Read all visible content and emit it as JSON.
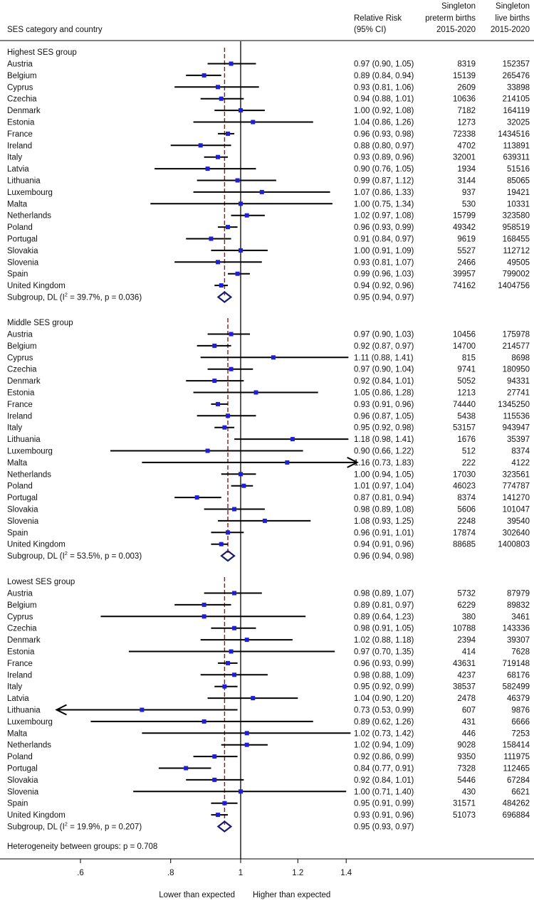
{
  "chart_data": {
    "type": "forest",
    "header": {
      "col1": "SES category and country",
      "rr": [
        "Relative Risk",
        "(95% CI)"
      ],
      "preterm": [
        "Singleton",
        "preterm births",
        "2015-2020"
      ],
      "live": [
        "Singleton",
        "live births",
        "2015-2020"
      ]
    },
    "x_axis": {
      "range": [
        0.5,
        1.45
      ],
      "ticks": [
        {
          "value": 0.6,
          "label": ".6"
        },
        {
          "value": 0.8,
          "label": ".8"
        },
        {
          "value": 1.0,
          "label": "1"
        },
        {
          "value": 1.2,
          "label": "1.2"
        },
        {
          "value": 1.4,
          "label": "1.4"
        }
      ],
      "left_label": "Lower than expected",
      "right_label": "Higher than expected",
      "reference_line": 1.0
    },
    "heterogeneity": "Heterogeneity between groups: p = 0.708",
    "groups": [
      {
        "title": "Highest SES group",
        "rows": [
          {
            "country": "Austria",
            "rr": 0.97,
            "lo": 0.9,
            "hi": 1.05,
            "ci": "0.97 (0.90, 1.05)",
            "preterm": "8319",
            "live": "152357"
          },
          {
            "country": "Belgium",
            "rr": 0.89,
            "lo": 0.84,
            "hi": 0.94,
            "ci": "0.89 (0.84, 0.94)",
            "preterm": "15139",
            "live": "265476"
          },
          {
            "country": "Cyprus",
            "rr": 0.93,
            "lo": 0.81,
            "hi": 1.06,
            "ci": "0.93 (0.81, 1.06)",
            "preterm": "2609",
            "live": "33898"
          },
          {
            "country": "Czechia",
            "rr": 0.94,
            "lo": 0.88,
            "hi": 1.01,
            "ci": "0.94 (0.88, 1.01)",
            "preterm": "10636",
            "live": "214105"
          },
          {
            "country": "Denmark",
            "rr": 1.0,
            "lo": 0.92,
            "hi": 1.08,
            "ci": "1.00 (0.92, 1.08)",
            "preterm": "7182",
            "live": "164119"
          },
          {
            "country": "Estonia",
            "rr": 1.04,
            "lo": 0.86,
            "hi": 1.26,
            "ci": "1.04 (0.86, 1.26)",
            "preterm": "1273",
            "live": "32025"
          },
          {
            "country": "France",
            "rr": 0.96,
            "lo": 0.93,
            "hi": 0.98,
            "ci": "0.96 (0.93, 0.98)",
            "preterm": "72338",
            "live": "1434516"
          },
          {
            "country": "Ireland",
            "rr": 0.88,
            "lo": 0.8,
            "hi": 0.97,
            "ci": "0.88 (0.80, 0.97)",
            "preterm": "4702",
            "live": "113891"
          },
          {
            "country": "Italy",
            "rr": 0.93,
            "lo": 0.89,
            "hi": 0.96,
            "ci": "0.93 (0.89, 0.96)",
            "preterm": "32001",
            "live": "639311"
          },
          {
            "country": "Latvia",
            "rr": 0.9,
            "lo": 0.76,
            "hi": 1.05,
            "ci": "0.90 (0.76, 1.05)",
            "preterm": "1934",
            "live": "51516"
          },
          {
            "country": "Lithuania",
            "rr": 0.99,
            "lo": 0.87,
            "hi": 1.12,
            "ci": "0.99 (0.87, 1.12)",
            "preterm": "3144",
            "live": "85065"
          },
          {
            "country": "Luxembourg",
            "rr": 1.07,
            "lo": 0.86,
            "hi": 1.33,
            "ci": "1.07 (0.86, 1.33)",
            "preterm": "937",
            "live": "19421"
          },
          {
            "country": "Malta",
            "rr": 1.0,
            "lo": 0.75,
            "hi": 1.34,
            "ci": "1.00 (0.75, 1.34)",
            "preterm": "530",
            "live": "10331"
          },
          {
            "country": "Netherlands",
            "rr": 1.02,
            "lo": 0.97,
            "hi": 1.08,
            "ci": "1.02 (0.97, 1.08)",
            "preterm": "15799",
            "live": "323580"
          },
          {
            "country": "Poland",
            "rr": 0.96,
            "lo": 0.93,
            "hi": 0.99,
            "ci": "0.96 (0.93, 0.99)",
            "preterm": "49342",
            "live": "958519"
          },
          {
            "country": "Portugal",
            "rr": 0.91,
            "lo": 0.84,
            "hi": 0.97,
            "ci": "0.91 (0.84, 0.97)",
            "preterm": "9619",
            "live": "168455"
          },
          {
            "country": "Slovakia",
            "rr": 1.0,
            "lo": 0.91,
            "hi": 1.09,
            "ci": "1.00 (0.91, 1.09)",
            "preterm": "5527",
            "live": "112712"
          },
          {
            "country": "Slovenia",
            "rr": 0.93,
            "lo": 0.81,
            "hi": 1.07,
            "ci": "0.93 (0.81, 1.07)",
            "preterm": "2466",
            "live": "49505"
          },
          {
            "country": "Spain",
            "rr": 0.99,
            "lo": 0.96,
            "hi": 1.03,
            "ci": "0.99 (0.96, 1.03)",
            "preterm": "39957",
            "live": "799002"
          },
          {
            "country": "United Kingdom",
            "rr": 0.94,
            "lo": 0.92,
            "hi": 0.96,
            "ci": "0.94 (0.92, 0.96)",
            "preterm": "74162",
            "live": "1404756"
          }
        ],
        "subgroup": {
          "label_pre": "Subgroup, DL (I",
          "label_post": " = 39.7%, p = 0.036)",
          "rr": 0.95,
          "lo": 0.94,
          "hi": 0.97,
          "ci": "0.95 (0.94, 0.97)"
        }
      },
      {
        "title": "Middle SES group",
        "rows": [
          {
            "country": "Austria",
            "rr": 0.97,
            "lo": 0.9,
            "hi": 1.03,
            "ci": "0.97 (0.90, 1.03)",
            "preterm": "10456",
            "live": "175978"
          },
          {
            "country": "Belgium",
            "rr": 0.92,
            "lo": 0.87,
            "hi": 0.97,
            "ci": "0.92 (0.87, 0.97)",
            "preterm": "14700",
            "live": "214577"
          },
          {
            "country": "Cyprus",
            "rr": 1.11,
            "lo": 0.88,
            "hi": 1.41,
            "ci": "1.11 (0.88, 1.41)",
            "preterm": "815",
            "live": "8698"
          },
          {
            "country": "Czechia",
            "rr": 0.97,
            "lo": 0.9,
            "hi": 1.04,
            "ci": "0.97 (0.90, 1.04)",
            "preterm": "9741",
            "live": "180950"
          },
          {
            "country": "Denmark",
            "rr": 0.92,
            "lo": 0.84,
            "hi": 1.01,
            "ci": "0.92 (0.84, 1.01)",
            "preterm": "5052",
            "live": "94331"
          },
          {
            "country": "Estonia",
            "rr": 1.05,
            "lo": 0.86,
            "hi": 1.28,
            "ci": "1.05 (0.86, 1.28)",
            "preterm": "1213",
            "live": "27741"
          },
          {
            "country": "France",
            "rr": 0.93,
            "lo": 0.91,
            "hi": 0.96,
            "ci": "0.93 (0.91, 0.96)",
            "preterm": "74440",
            "live": "1345250"
          },
          {
            "country": "Ireland",
            "rr": 0.96,
            "lo": 0.87,
            "hi": 1.05,
            "ci": "0.96 (0.87, 1.05)",
            "preterm": "5438",
            "live": "115536"
          },
          {
            "country": "Italy",
            "rr": 0.95,
            "lo": 0.92,
            "hi": 0.98,
            "ci": "0.95 (0.92, 0.98)",
            "preterm": "53157",
            "live": "943947"
          },
          {
            "country": "Lithuania",
            "rr": 1.18,
            "lo": 0.98,
            "hi": 1.41,
            "ci": "1.18 (0.98, 1.41)",
            "preterm": "1676",
            "live": "35397"
          },
          {
            "country": "Luxembourg",
            "rr": 0.9,
            "lo": 0.66,
            "hi": 1.22,
            "ci": "0.90 (0.66, 1.22)",
            "preterm": "512",
            "live": "8374"
          },
          {
            "country": "Malta",
            "rr": 1.16,
            "lo": 0.73,
            "hi": 1.83,
            "ci": "1.16 (0.73, 1.83)",
            "preterm": "222",
            "live": "4122"
          },
          {
            "country": "Netherlands",
            "rr": 1.0,
            "lo": 0.94,
            "hi": 1.05,
            "ci": "1.00 (0.94, 1.05)",
            "preterm": "17030",
            "live": "323561"
          },
          {
            "country": "Poland",
            "rr": 1.01,
            "lo": 0.97,
            "hi": 1.04,
            "ci": "1.01 (0.97, 1.04)",
            "preterm": "46023",
            "live": "774787"
          },
          {
            "country": "Portugal",
            "rr": 0.87,
            "lo": 0.81,
            "hi": 0.94,
            "ci": "0.87 (0.81, 0.94)",
            "preterm": "8374",
            "live": "141270"
          },
          {
            "country": "Slovakia",
            "rr": 0.98,
            "lo": 0.89,
            "hi": 1.08,
            "ci": "0.98 (0.89, 1.08)",
            "preterm": "5606",
            "live": "101047"
          },
          {
            "country": "Slovenia",
            "rr": 1.08,
            "lo": 0.93,
            "hi": 1.25,
            "ci": "1.08 (0.93, 1.25)",
            "preterm": "2248",
            "live": "39540"
          },
          {
            "country": "Spain",
            "rr": 0.96,
            "lo": 0.91,
            "hi": 1.01,
            "ci": "0.96 (0.91, 1.01)",
            "preterm": "17874",
            "live": "302640"
          },
          {
            "country": "United Kingdom",
            "rr": 0.94,
            "lo": 0.91,
            "hi": 0.96,
            "ci": "0.94 (0.91, 0.96)",
            "preterm": "88685",
            "live": "1400803"
          }
        ],
        "subgroup": {
          "label_pre": "Subgroup, DL (I",
          "label_post": " = 53.5%, p = 0.003)",
          "rr": 0.96,
          "lo": 0.94,
          "hi": 0.98,
          "ci": "0.96 (0.94, 0.98)"
        }
      },
      {
        "title": "Lowest SES group",
        "rows": [
          {
            "country": "Austria",
            "rr": 0.98,
            "lo": 0.89,
            "hi": 1.07,
            "ci": "0.98 (0.89, 1.07)",
            "preterm": "5732",
            "live": "87979"
          },
          {
            "country": "Belgium",
            "rr": 0.89,
            "lo": 0.81,
            "hi": 0.97,
            "ci": "0.89 (0.81, 0.97)",
            "preterm": "6229",
            "live": "89832"
          },
          {
            "country": "Cyprus",
            "rr": 0.89,
            "lo": 0.64,
            "hi": 1.23,
            "ci": "0.89 (0.64, 1.23)",
            "preterm": "380",
            "live": "3461"
          },
          {
            "country": "Czechia",
            "rr": 0.98,
            "lo": 0.91,
            "hi": 1.05,
            "ci": "0.98 (0.91, 1.05)",
            "preterm": "10788",
            "live": "143336"
          },
          {
            "country": "Denmark",
            "rr": 1.02,
            "lo": 0.88,
            "hi": 1.18,
            "ci": "1.02 (0.88, 1.18)",
            "preterm": "2394",
            "live": "39307"
          },
          {
            "country": "Estonia",
            "rr": 0.97,
            "lo": 0.7,
            "hi": 1.35,
            "ci": "0.97 (0.70, 1.35)",
            "preterm": "414",
            "live": "7628"
          },
          {
            "country": "France",
            "rr": 0.96,
            "lo": 0.93,
            "hi": 0.99,
            "ci": "0.96 (0.93, 0.99)",
            "preterm": "43631",
            "live": "719148"
          },
          {
            "country": "Ireland",
            "rr": 0.98,
            "lo": 0.88,
            "hi": 1.09,
            "ci": "0.98 (0.88, 1.09)",
            "preterm": "4237",
            "live": "68176"
          },
          {
            "country": "Italy",
            "rr": 0.95,
            "lo": 0.92,
            "hi": 0.99,
            "ci": "0.95 (0.92, 0.99)",
            "preterm": "38537",
            "live": "582499"
          },
          {
            "country": "Latvia",
            "rr": 1.04,
            "lo": 0.9,
            "hi": 1.2,
            "ci": "1.04 (0.90, 1.20)",
            "preterm": "2478",
            "live": "46379"
          },
          {
            "country": "Lithuania",
            "rr": 0.73,
            "lo": 0.53,
            "hi": 0.99,
            "ci": "0.73 (0.53, 0.99)",
            "preterm": "607",
            "live": "9876"
          },
          {
            "country": "Luxembourg",
            "rr": 0.89,
            "lo": 0.62,
            "hi": 1.26,
            "ci": "0.89 (0.62, 1.26)",
            "preterm": "431",
            "live": "6666"
          },
          {
            "country": "Malta",
            "rr": 1.02,
            "lo": 0.73,
            "hi": 1.42,
            "ci": "1.02 (0.73, 1.42)",
            "preterm": "446",
            "live": "7253"
          },
          {
            "country": "Netherlands",
            "rr": 1.02,
            "lo": 0.94,
            "hi": 1.09,
            "ci": "1.02 (0.94, 1.09)",
            "preterm": "9028",
            "live": "158414"
          },
          {
            "country": "Poland",
            "rr": 0.92,
            "lo": 0.86,
            "hi": 0.99,
            "ci": "0.92 (0.86, 0.99)",
            "preterm": "9350",
            "live": "111975"
          },
          {
            "country": "Portugal",
            "rr": 0.84,
            "lo": 0.77,
            "hi": 0.91,
            "ci": "0.84 (0.77, 0.91)",
            "preterm": "7328",
            "live": "112465"
          },
          {
            "country": "Slovakia",
            "rr": 0.92,
            "lo": 0.84,
            "hi": 1.01,
            "ci": "0.92 (0.84, 1.01)",
            "preterm": "5446",
            "live": "67284"
          },
          {
            "country": "Slovenia",
            "rr": 1.0,
            "lo": 0.71,
            "hi": 1.4,
            "ci": "1.00 (0.71, 1.40)",
            "preterm": "430",
            "live": "6621"
          },
          {
            "country": "Spain",
            "rr": 0.95,
            "lo": 0.91,
            "hi": 0.99,
            "ci": "0.95 (0.91, 0.99)",
            "preterm": "31571",
            "live": "484262"
          },
          {
            "country": "United Kingdom",
            "rr": 0.93,
            "lo": 0.91,
            "hi": 0.96,
            "ci": "0.93 (0.91, 0.96)",
            "preterm": "51073",
            "live": "696884"
          }
        ],
        "subgroup": {
          "label_pre": "Subgroup, DL (I",
          "label_post": " = 19.9%, p = 0.207)",
          "rr": 0.95,
          "lo": 0.93,
          "hi": 0.97,
          "ci": "0.95 (0.93, 0.97)"
        }
      }
    ],
    "colors": {
      "marker": "#1f1fd6",
      "diamond": "#1a1a6e",
      "dashed": "#8b1a1a",
      "line": "#000000"
    }
  }
}
